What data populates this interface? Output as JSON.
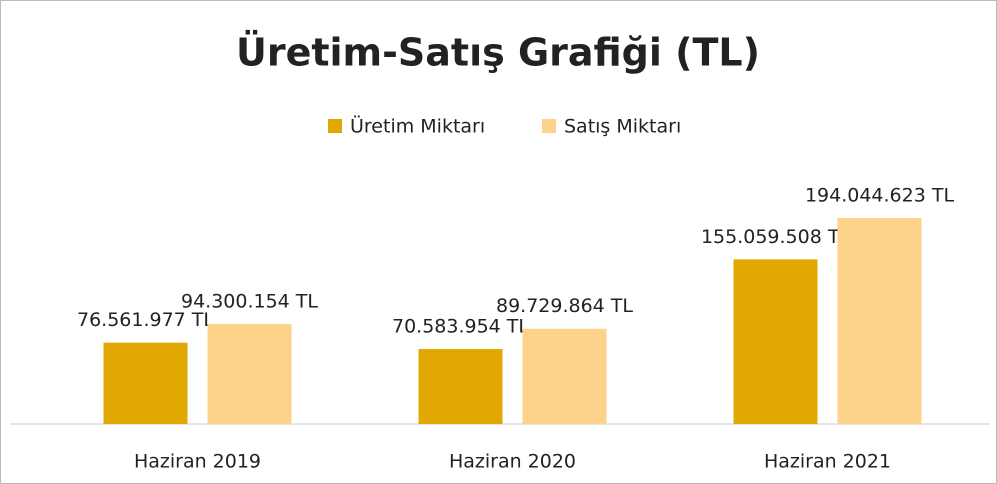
{
  "chart_data": {
    "type": "bar",
    "title": "Üretim-Satış Grafiği (TL)",
    "categories": [
      "Haziran 2019",
      "Haziran 2020",
      "Haziran 2021"
    ],
    "series": [
      {
        "name": "Üretim Miktarı",
        "color": "#e0a800",
        "values": [
          76561977,
          70583954,
          155059508
        ],
        "value_labels": [
          "76.561.977 TL",
          "70.583.954 TL",
          "155.059.508 TL"
        ]
      },
      {
        "name": "Satış Miktarı",
        "color": "#fdd28a",
        "values": [
          94300154,
          89729864,
          194044623
        ],
        "value_labels": [
          "94.300.154 TL",
          "89.729.864 TL",
          "194.044.623 TL"
        ]
      }
    ],
    "legend": "top"
  }
}
